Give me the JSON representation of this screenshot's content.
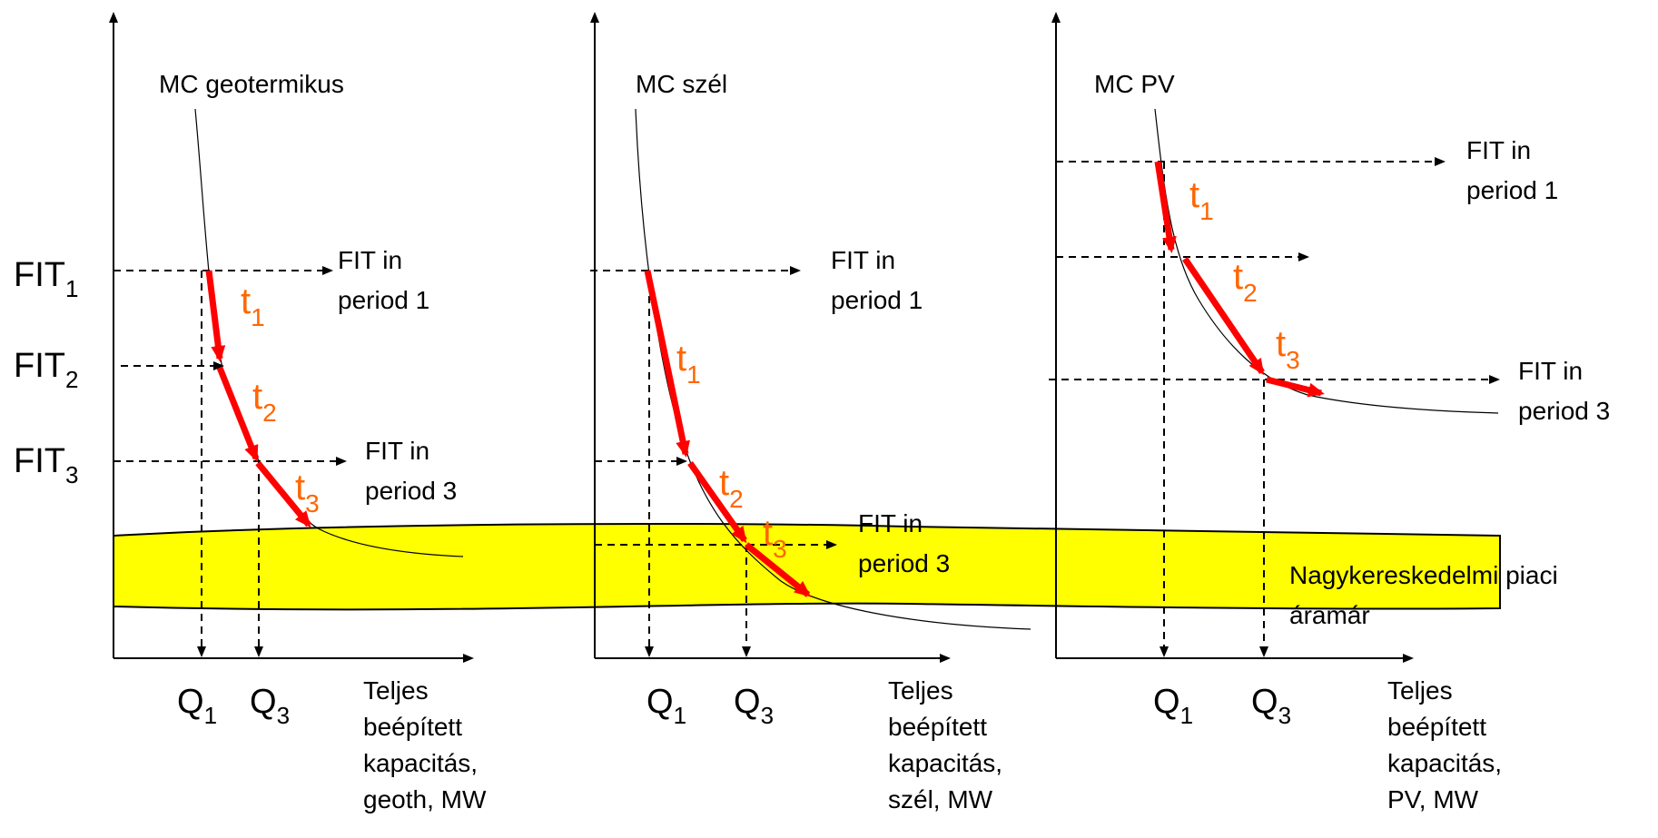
{
  "colors": {
    "band": "#ffff00",
    "arrow": "#ff0000",
    "t_label": "#ff6600",
    "text": "#000000"
  },
  "panels": [
    {
      "curve_label": "MC geotermikus",
      "x_axis_label": [
        "Teljes",
        "beépített",
        "kapacitás,",
        "geoth, MW"
      ],
      "q_labels": [
        {
          "main": "Q",
          "sub": "1"
        },
        {
          "main": "Q",
          "sub": "3"
        }
      ],
      "fit_levels": [
        {
          "main": "FIT",
          "sub": "1"
        },
        {
          "main": "FIT",
          "sub": "2"
        },
        {
          "main": "FIT",
          "sub": "3"
        }
      ],
      "fit_notes": [
        [
          "FIT in",
          "period 1"
        ],
        [
          "FIT in",
          "period 3"
        ]
      ],
      "steps": [
        {
          "main": "t",
          "sub": "1"
        },
        {
          "main": "t",
          "sub": "2"
        },
        {
          "main": "t",
          "sub": "3"
        }
      ]
    },
    {
      "curve_label": "MC szél",
      "x_axis_label": [
        "Teljes",
        "beépített",
        "kapacitás,",
        "szél, MW"
      ],
      "q_labels": [
        {
          "main": "Q",
          "sub": "1"
        },
        {
          "main": "Q",
          "sub": "3"
        }
      ],
      "fit_notes": [
        [
          "FIT in",
          "period 1"
        ],
        [
          "FIT in",
          "period 3"
        ]
      ],
      "steps": [
        {
          "main": "t",
          "sub": "1"
        },
        {
          "main": "t",
          "sub": "2"
        },
        {
          "main": "t",
          "sub": "3"
        }
      ]
    },
    {
      "curve_label": "MC PV",
      "x_axis_label": [
        "Teljes",
        "beépített",
        "kapacitás,",
        "PV, MW"
      ],
      "q_labels": [
        {
          "main": "Q",
          "sub": "1"
        },
        {
          "main": "Q",
          "sub": "3"
        }
      ],
      "fit_notes": [
        [
          "FIT in",
          "period 1"
        ],
        [
          "FIT in",
          "period 3"
        ]
      ],
      "steps": [
        {
          "main": "t",
          "sub": "1"
        },
        {
          "main": "t",
          "sub": "2"
        },
        {
          "main": "t",
          "sub": "3"
        }
      ]
    }
  ],
  "band_label": [
    "Nagykereskedelmi piaci",
    "áramár"
  ]
}
